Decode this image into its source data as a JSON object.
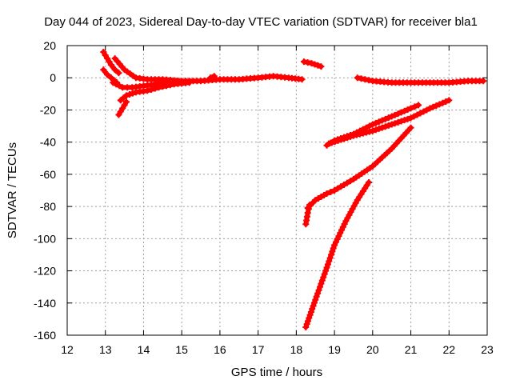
{
  "chart_data": {
    "type": "scatter",
    "title": "Day 044 of 2023, Sidereal Day-to-day VTEC variation (SDTVAR) for receiver bla1",
    "xlabel": "GPS time / hours",
    "ylabel": "SDTVAR / TECUs",
    "xlim": [
      12,
      23
    ],
    "ylim": [
      -160,
      20
    ],
    "xticks": [
      12,
      13,
      14,
      15,
      16,
      17,
      18,
      19,
      20,
      21,
      22,
      23
    ],
    "yticks": [
      20,
      0,
      -20,
      -40,
      -60,
      -80,
      -100,
      -120,
      -140,
      -160
    ],
    "grid": true,
    "marker": "+",
    "color": "#ff0000",
    "series": [
      {
        "x": [
          12.95,
          13.05,
          13.15,
          13.25,
          13.35
        ],
        "y": [
          16,
          12,
          8,
          5,
          3
        ]
      },
      {
        "x": [
          12.95,
          13.05,
          13.15,
          13.3
        ],
        "y": [
          5,
          2,
          0,
          -3
        ]
      },
      {
        "x": [
          13.2,
          13.45,
          13.7,
          14.0,
          14.3,
          14.8
        ],
        "y": [
          -3,
          -6,
          -6,
          -5,
          -4,
          -3
        ]
      },
      {
        "x": [
          13.25,
          13.5,
          13.8,
          14.1,
          14.5,
          15.0,
          15.5,
          16.0,
          16.5,
          17.0,
          17.4,
          17.8,
          18.15
        ],
        "y": [
          12,
          5,
          0,
          -1,
          -1,
          -2,
          -2,
          -1,
          -1,
          0,
          1,
          0,
          -1
        ]
      },
      {
        "x": [
          13.4,
          13.55,
          13.8,
          14.1,
          14.4,
          14.8,
          15.2
        ],
        "y": [
          -14,
          -11,
          -9,
          -8,
          -6,
          -4,
          -3
        ]
      },
      {
        "x": [
          13.35,
          13.45,
          13.55
        ],
        "y": [
          -23,
          -19,
          -15
        ]
      },
      {
        "x": [
          15.75,
          15.85
        ],
        "y": [
          0,
          1
        ]
      },
      {
        "x": [
          18.2,
          18.4,
          18.65
        ],
        "y": [
          10,
          9,
          7
        ]
      },
      {
        "x": [
          19.6,
          20.0,
          20.5,
          21.0,
          21.5,
          22.0,
          22.5,
          22.9
        ],
        "y": [
          0,
          -2,
          -3,
          -3,
          -3,
          -3,
          -2,
          -2
        ]
      },
      {
        "x": [
          18.8,
          19.0,
          19.5,
          20.0,
          20.5,
          21.0,
          21.2
        ],
        "y": [
          -42,
          -39,
          -35,
          -29,
          -24,
          -19,
          -17
        ]
      },
      {
        "x": [
          18.85,
          19.5,
          20.0,
          20.5,
          21.0,
          21.5,
          22.0
        ],
        "y": [
          -41,
          -36,
          -33,
          -29,
          -25,
          -19,
          -14
        ]
      },
      {
        "x": [
          18.3,
          18.5,
          18.8,
          19.0,
          19.5,
          20.0,
          20.5,
          21.0
        ],
        "y": [
          -81,
          -76,
          -72,
          -70,
          -63,
          -55,
          -44,
          -31
        ]
      },
      {
        "x": [
          18.25,
          18.3,
          18.35
        ],
        "y": [
          -91,
          -84,
          -79
        ]
      },
      {
        "x": [
          18.25,
          18.5,
          18.8,
          19.0,
          19.3,
          19.6,
          19.9
        ],
        "y": [
          -155,
          -138,
          -118,
          -104,
          -89,
          -76,
          -65
        ]
      }
    ]
  }
}
